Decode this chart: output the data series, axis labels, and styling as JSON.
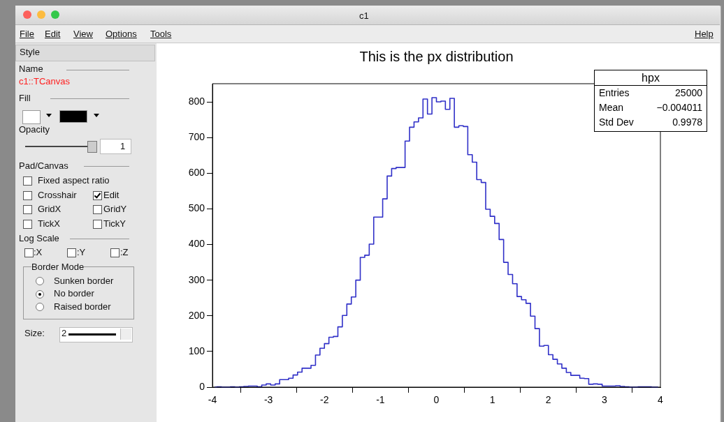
{
  "chart_data": {
    "type": "histogram",
    "title": "This is the px distribution",
    "color": "#3030c8",
    "bins": [
      -4,
      -3.92,
      -3.84,
      -3.76,
      -3.68,
      -3.6,
      -3.52,
      -3.44,
      -3.36,
      -3.28,
      -3.2,
      -3.12,
      -3.04,
      -2.96,
      -2.88,
      -2.8,
      -2.72,
      -2.64,
      -2.56,
      -2.48,
      -2.4,
      -2.32,
      -2.24,
      -2.16,
      -2.08,
      -2,
      -1.92,
      -1.84,
      -1.76,
      -1.68,
      -1.6,
      -1.52,
      -1.44,
      -1.36,
      -1.28,
      -1.2,
      -1.12,
      -1.04,
      -0.96,
      -0.88,
      -0.8,
      -0.72,
      -0.64,
      -0.56,
      -0.48,
      -0.4,
      -0.32,
      -0.24,
      -0.16,
      -0.08,
      0,
      0.08,
      0.16,
      0.24,
      0.32,
      0.4,
      0.48,
      0.56,
      0.64,
      0.72,
      0.8,
      0.88,
      0.96,
      1.04,
      1.12,
      1.2,
      1.28,
      1.36,
      1.44,
      1.52,
      1.6,
      1.68,
      1.76,
      1.84,
      1.92,
      2,
      2.08,
      2.16,
      2.24,
      2.32,
      2.4,
      2.48,
      2.56,
      2.64,
      2.72,
      2.8,
      2.88,
      2.96,
      3.04,
      3.12,
      3.2,
      3.28,
      3.36,
      3.44,
      3.52,
      3.6,
      3.68,
      3.76,
      3.84,
      3.92,
      4
    ],
    "values": [
      0,
      1,
      0,
      0,
      1,
      0,
      1,
      2,
      3,
      3,
      1,
      6,
      9,
      6,
      9,
      21,
      21,
      25,
      34,
      42,
      53,
      53,
      61,
      90,
      109,
      122,
      140,
      142,
      169,
      201,
      233,
      253,
      300,
      364,
      370,
      401,
      477,
      477,
      528,
      592,
      613,
      616,
      616,
      690,
      729,
      744,
      755,
      808,
      766,
      812,
      800,
      802,
      779,
      810,
      729,
      733,
      731,
      652,
      631,
      582,
      574,
      499,
      479,
      459,
      414,
      350,
      316,
      290,
      254,
      245,
      235,
      199,
      164,
      115,
      117,
      91,
      78,
      65,
      53,
      41,
      33,
      33,
      25,
      24,
      8,
      9,
      8,
      3,
      3,
      3,
      4,
      2,
      1,
      0,
      0,
      1,
      1,
      1,
      0,
      0
    ],
    "xlim": [
      -4,
      4
    ],
    "ylim": [
      0,
      851
    ],
    "xticks": [
      -4,
      -3,
      -2,
      -1,
      0,
      1,
      2,
      3,
      4
    ],
    "yticks": [
      0,
      100,
      200,
      300,
      400,
      500,
      600,
      700,
      800
    ],
    "annotations": [
      "hpx",
      "Entries",
      "25000",
      "Mean",
      "−0.004011",
      "Std Dev",
      "0.9978",
      "c1",
      "File",
      "Edit",
      "View",
      "Options",
      "Tools",
      "Help",
      "Style",
      "Name",
      "c1::TCanvas",
      "Fill",
      "Opacity",
      "1",
      "Pad/Canvas",
      "Fixed aspect ratio",
      "Crosshair",
      "Edit",
      "GridX",
      "GridY",
      "TickX",
      "TickY",
      "Log Scale",
      ":X",
      ":Y",
      ":Z",
      "Border Mode",
      "Sunken border",
      "No border",
      "Raised border",
      "Size:",
      "2"
    ]
  }
}
